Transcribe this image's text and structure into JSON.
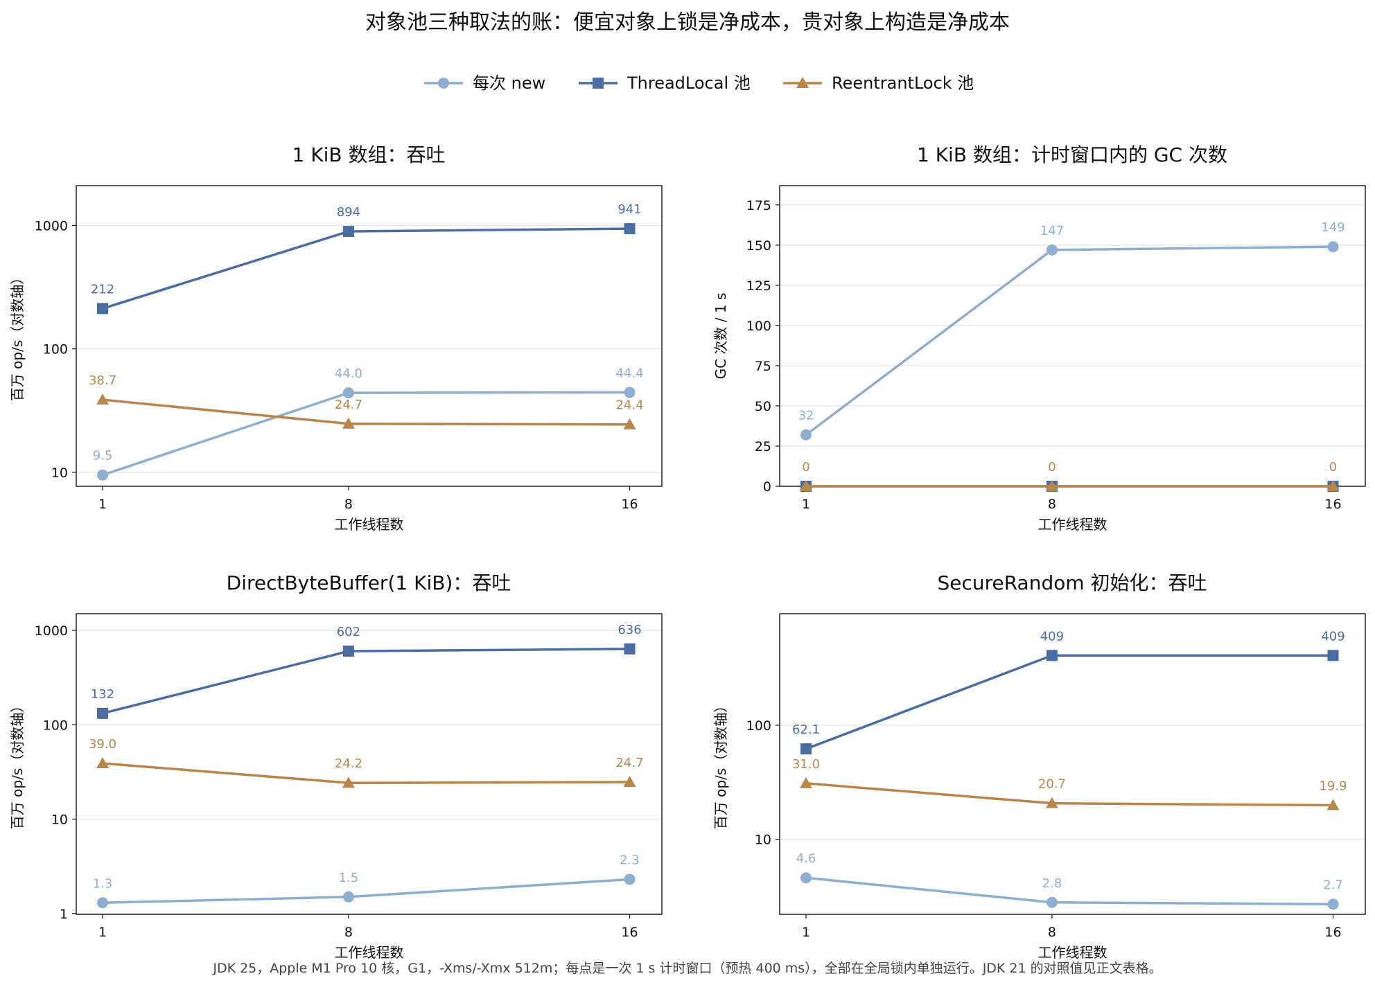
{
  "title": "对象池三种取法的账：便宜对象上锁是净成本，贵对象上构造是净成本",
  "footnote": "JDK 25，Apple M1 Pro 10 核，G1，-Xms/-Xmx 512m；每点是一次 1 s 计时窗口（预热 400 ms），全部在全局锁内单独运行。JDK 21 的对照值见正文表格。",
  "legend": {
    "placement": "top-center",
    "items": [
      {
        "label": "每次 new",
        "color": "#8eaecf",
        "marker": "circle"
      },
      {
        "label": "ThreadLocal 池",
        "color": "#4a6ca3",
        "marker": "square"
      },
      {
        "label": "ReentrantLock 池",
        "color": "#b8864b",
        "marker": "triangle"
      }
    ]
  },
  "chart_data": [
    {
      "type": "line",
      "title": "1 KiB 数组：吞吐",
      "xlabel": "工作线程数",
      "ylabel": "百万 op/s（对数轴）",
      "yscale": "log",
      "ylim": [
        7.7,
        2100
      ],
      "yticks": [
        10,
        100,
        1000
      ],
      "categories": [
        "1",
        "8",
        "16"
      ],
      "grid": true,
      "series": [
        {
          "name": "每次 new",
          "values": [
            9.5,
            44.0,
            44.4
          ],
          "labels": [
            "9.5",
            "44.0",
            "44.4"
          ]
        },
        {
          "name": "ThreadLocal 池",
          "values": [
            212,
            894,
            941
          ],
          "labels": [
            "212",
            "894",
            "941"
          ]
        },
        {
          "name": "ReentrantLock 池",
          "values": [
            38.7,
            24.7,
            24.4
          ],
          "labels": [
            "38.7",
            "24.7",
            "24.4"
          ]
        }
      ]
    },
    {
      "type": "line",
      "title": "1 KiB 数组：计时窗口内的 GC 次数",
      "xlabel": "工作线程数",
      "ylabel": "GC 次数 / 1 s",
      "yscale": "linear",
      "ylim": [
        0,
        187
      ],
      "yticks": [
        0,
        25,
        50,
        75,
        100,
        125,
        150,
        175
      ],
      "categories": [
        "1",
        "8",
        "16"
      ],
      "grid": true,
      "series": [
        {
          "name": "每次 new",
          "values": [
            32,
            147,
            149
          ],
          "labels": [
            "32",
            "147",
            "149"
          ]
        },
        {
          "name": "ThreadLocal 池",
          "values": [
            0,
            0,
            0
          ],
          "labels": []
        },
        {
          "name": "ReentrantLock 池",
          "values": [
            0,
            0,
            0
          ],
          "labels": [
            "0",
            "0",
            "0"
          ]
        }
      ]
    },
    {
      "type": "line",
      "title": "DirectByteBuffer(1 KiB)：吞吐",
      "xlabel": "工作线程数",
      "ylabel": "百万 op/s（对数轴）",
      "yscale": "log",
      "ylim": [
        0.98,
        1500
      ],
      "yticks": [
        1,
        10,
        100,
        1000
      ],
      "categories": [
        "1",
        "8",
        "16"
      ],
      "grid": true,
      "series": [
        {
          "name": "每次 new",
          "values": [
            1.3,
            1.5,
            2.3
          ],
          "labels": [
            "1.3",
            "1.5",
            "2.3"
          ]
        },
        {
          "name": "ThreadLocal 池",
          "values": [
            132,
            602,
            636
          ],
          "labels": [
            "132",
            "602",
            "636"
          ]
        },
        {
          "name": "ReentrantLock 池",
          "values": [
            39.0,
            24.2,
            24.7
          ],
          "labels": [
            "39.0",
            "24.2",
            "24.7"
          ]
        }
      ]
    },
    {
      "type": "line",
      "title": "SecureRandom 初始化：吞吐",
      "xlabel": "工作线程数",
      "ylabel": "百万 op/s（对数轴）",
      "yscale": "log",
      "ylim": [
        2.2,
        950
      ],
      "yticks": [
        10,
        100
      ],
      "categories": [
        "1",
        "8",
        "16"
      ],
      "grid": true,
      "series": [
        {
          "name": "每次 new",
          "values": [
            4.6,
            2.8,
            2.7
          ],
          "labels": [
            "4.6",
            "2.8",
            "2.7"
          ]
        },
        {
          "name": "ThreadLocal 池",
          "values": [
            62.1,
            409,
            409
          ],
          "labels": [
            "62.1",
            "409",
            "409"
          ]
        },
        {
          "name": "ReentrantLock 池",
          "values": [
            31.0,
            20.7,
            19.9
          ],
          "labels": [
            "31.0",
            "20.7",
            "19.9"
          ]
        }
      ]
    }
  ]
}
